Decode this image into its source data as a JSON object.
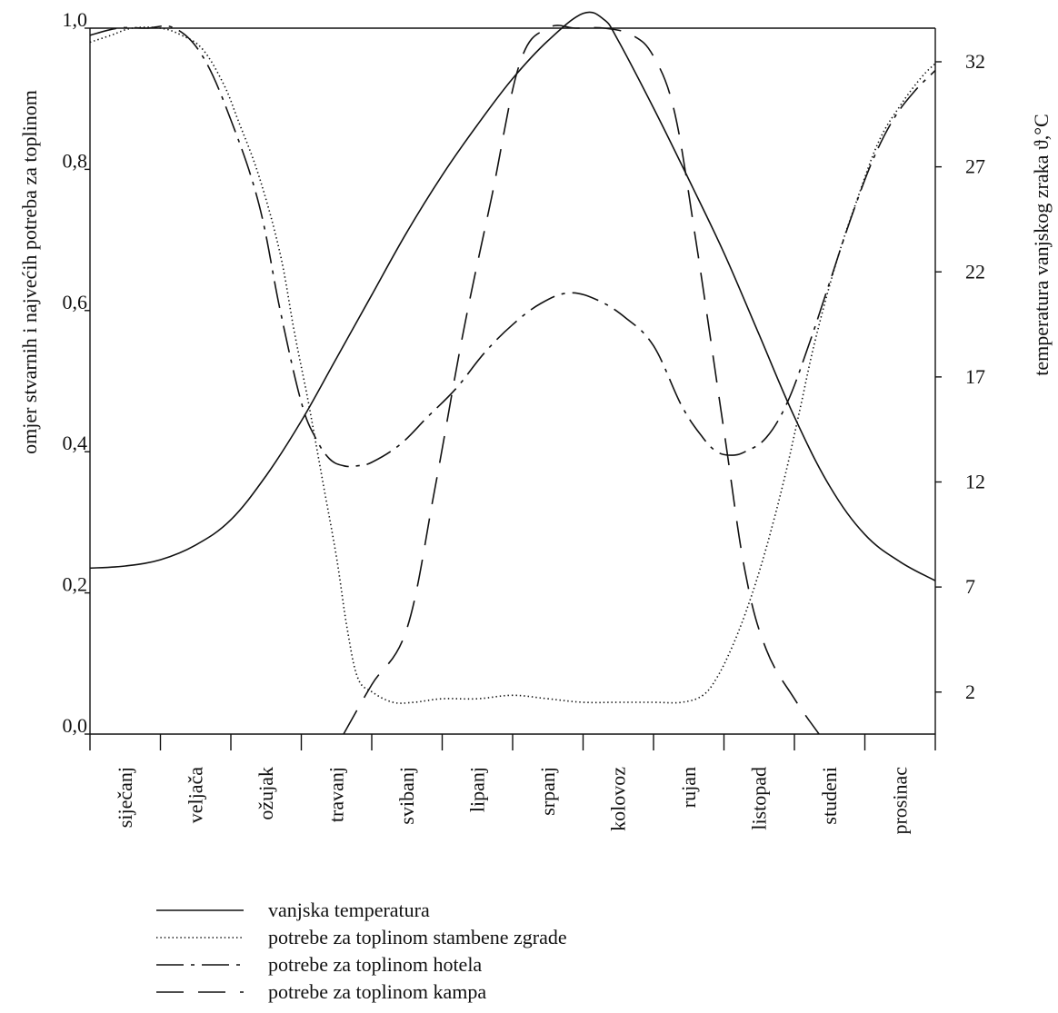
{
  "chart_data": {
    "type": "line",
    "ylabel": "omjer stvarnih i najvećih potreba za toplinom",
    "y2label": "temperatura vanjskog zraka ϑ,°C",
    "ylim": [
      0,
      1
    ],
    "y2lim": [
      0,
      33.6
    ],
    "yticks": [
      "0,0",
      "0,2",
      "0,4",
      "0,6",
      "0,8",
      "1,0"
    ],
    "y2ticks": [
      "2",
      "7",
      "12",
      "17",
      "22",
      "27",
      "32"
    ],
    "xlim": [
      0,
      12
    ],
    "months": [
      "siječanj",
      "veljača",
      "ožujak",
      "travanj",
      "svibanj",
      "lipanj",
      "srpanj",
      "kolovoz",
      "rujan",
      "listopad",
      "studeni",
      "prosinac"
    ],
    "series": [
      {
        "name": "vanjska temperatura",
        "style": "solid",
        "axis": "right",
        "x": [
          0,
          0.5,
          1,
          1.5,
          2,
          2.5,
          3,
          3.5,
          4,
          4.5,
          5,
          5.5,
          6,
          6.5,
          7,
          7.3,
          7.5,
          8,
          8.5,
          9,
          9.5,
          10,
          10.5,
          11,
          11.5,
          12
        ],
        "y": [
          7.9,
          8.0,
          8.3,
          9.0,
          10.2,
          12.3,
          14.9,
          17.9,
          20.9,
          23.9,
          26.6,
          29.0,
          31.2,
          33.0,
          34.3,
          34.0,
          33.0,
          29.8,
          26.4,
          22.9,
          19.0,
          15.1,
          11.8,
          9.5,
          8.2,
          7.3
        ]
      },
      {
        "name": "potrebe za toplinom stambene zgrade",
        "style": "dotted",
        "axis": "left",
        "x": [
          0,
          0.3,
          0.6,
          1,
          1.3,
          1.6,
          1.9,
          2.1,
          2.4,
          2.7,
          2.9,
          3.1,
          3.3,
          3.5,
          3.65,
          3.8,
          4,
          4.3,
          4.6,
          5,
          5.5,
          6,
          6.5,
          7,
          7.5,
          8,
          8.4,
          8.7,
          8.9,
          9.1,
          9.3,
          9.5,
          9.7,
          9.9,
          10.1,
          10.3,
          10.6,
          10.9,
          11.2,
          11.5,
          11.8,
          12
        ],
        "y": [
          0.98,
          0.99,
          1.0,
          1.0,
          0.99,
          0.97,
          0.92,
          0.87,
          0.79,
          0.68,
          0.57,
          0.47,
          0.36,
          0.25,
          0.15,
          0.08,
          0.06,
          0.045,
          0.045,
          0.05,
          0.05,
          0.055,
          0.05,
          0.045,
          0.045,
          0.045,
          0.045,
          0.055,
          0.08,
          0.12,
          0.17,
          0.23,
          0.3,
          0.38,
          0.47,
          0.56,
          0.67,
          0.76,
          0.84,
          0.89,
          0.93,
          0.95
        ]
      },
      {
        "name": "potrebe za toplinom hotela",
        "style": "dash-dot",
        "axis": "left",
        "x": [
          0,
          0.4,
          0.8,
          1.2,
          1.6,
          2,
          2.4,
          2.7,
          3,
          3.2,
          3.4,
          3.6,
          3.8,
          4,
          4.4,
          4.8,
          5.2,
          5.6,
          6,
          6.4,
          6.8,
          7.2,
          7.6,
          8,
          8.4,
          8.7,
          8.9,
          9.1,
          9.3,
          9.6,
          9.9,
          10.2,
          10.5,
          10.8,
          11.1,
          11.4,
          11.7,
          12
        ],
        "y": [
          0.99,
          1.0,
          1.0,
          1.0,
          0.96,
          0.87,
          0.75,
          0.6,
          0.47,
          0.42,
          0.39,
          0.38,
          0.38,
          0.385,
          0.41,
          0.45,
          0.49,
          0.54,
          0.58,
          0.61,
          0.625,
          0.615,
          0.59,
          0.55,
          0.465,
          0.42,
          0.4,
          0.395,
          0.4,
          0.42,
          0.47,
          0.55,
          0.64,
          0.73,
          0.81,
          0.87,
          0.91,
          0.94
        ]
      },
      {
        "name": "potrebe za toplinom kampa",
        "style": "dashed",
        "axis": "left",
        "x": [
          3.6,
          4,
          4.5,
          4.9,
          5.3,
          5.7,
          6.1,
          6.5,
          6.9,
          7.3,
          7.7,
          8,
          8.3,
          8.6,
          9.0,
          9.3,
          9.6,
          10.0,
          10.35
        ],
        "y": [
          0.0,
          0.07,
          0.15,
          0.35,
          0.57,
          0.76,
          0.95,
          1.0,
          1.0,
          1.0,
          0.99,
          0.96,
          0.88,
          0.7,
          0.43,
          0.23,
          0.12,
          0.05,
          0.0
        ]
      }
    ],
    "legend": {
      "placement": "bottom",
      "entries": [
        "vanjska temperatura",
        "potrebe za toplinom stambene zgrade",
        "potrebe za toplinom hotela",
        "potrebe za toplinom kampa"
      ]
    },
    "grid": false
  }
}
